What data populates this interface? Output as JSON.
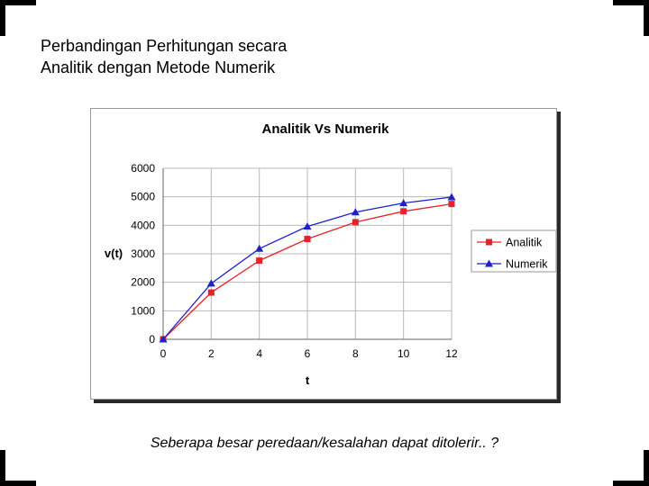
{
  "slide": {
    "title_line1": "Perbandingan Perhitungan secara",
    "title_line2": "Analitik dengan Metode Numerik",
    "caption": "Seberapa besar peredaan/kesalahan dapat ditolerir.. ?"
  },
  "chart_data": {
    "type": "line",
    "title": "Analitik Vs Numerik",
    "xlabel": "t",
    "ylabel": "v(t)",
    "x": [
      0,
      2,
      4,
      6,
      8,
      10,
      12
    ],
    "xlim": [
      0,
      12
    ],
    "ylim": [
      0,
      6000
    ],
    "xticks": [
      0,
      2,
      4,
      6,
      8,
      10,
      12
    ],
    "yticks": [
      0,
      1000,
      2000,
      3000,
      4000,
      5000,
      6000
    ],
    "grid": true,
    "legend_position": "right",
    "series": [
      {
        "name": "Analitik",
        "marker": "square",
        "color": "#e8202a",
        "values": [
          0,
          1640,
          2760,
          3520,
          4110,
          4490,
          4750
        ]
      },
      {
        "name": "Numerik",
        "marker": "triangle",
        "color": "#1c22c8",
        "values": [
          0,
          1960,
          3180,
          3960,
          4460,
          4780,
          4990
        ]
      }
    ]
  }
}
